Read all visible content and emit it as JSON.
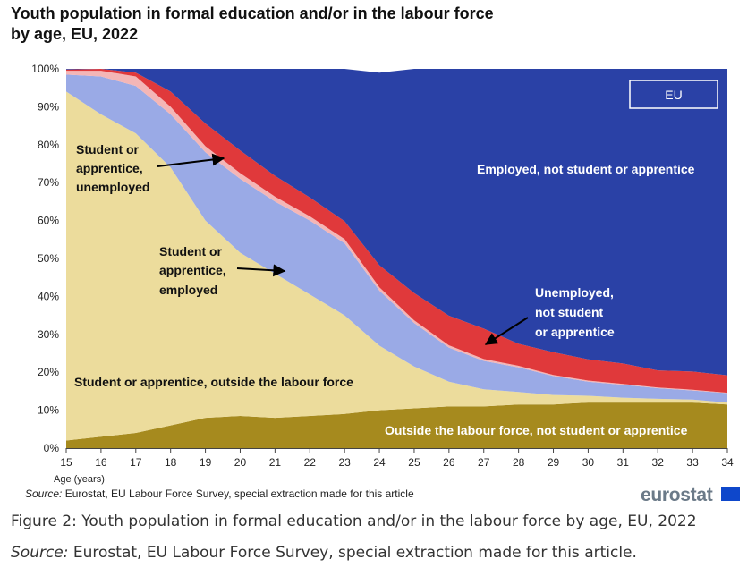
{
  "title_line1": "Youth population in formal education and/or in the labour force",
  "title_line2": "by age, EU, 2022",
  "source_label": "Source:",
  "source_text": " Eurostat, EU Labour Force Survey, special extraction made for this article",
  "logo_text": "eurostat",
  "caption": "Figure 2: Youth population in formal education and/or in the labour force by age, EU, 2022",
  "caption_source_label": "Source:",
  "caption_source_text": " Eurostat, EU Labour Force Survey, special extraction made for this article.",
  "chart_data": {
    "type": "area",
    "stacked": true,
    "xlabel": "Age (years)",
    "ylabel": "",
    "ylim": [
      0,
      100
    ],
    "grid": false,
    "legend_box": "EU",
    "x": [
      15,
      16,
      17,
      18,
      19,
      20,
      21,
      22,
      23,
      24,
      25,
      26,
      27,
      28,
      29,
      30,
      31,
      32,
      33,
      34
    ],
    "y_ticks": [
      "0%",
      "10%",
      "20%",
      "30%",
      "40%",
      "50%",
      "60%",
      "70%",
      "80%",
      "90%",
      "100%"
    ],
    "series": [
      {
        "name": "Outside the labour force, not student or apprentice",
        "color": "#a68a1e",
        "values": [
          2,
          3,
          4,
          6,
          8,
          8.5,
          8,
          8.5,
          9,
          10,
          10.5,
          11,
          11,
          11.5,
          11.5,
          12,
          12,
          12,
          12,
          11.5
        ]
      },
      {
        "name": "Student or apprentice, outside the labour force",
        "color": "#ecdc9c",
        "values": [
          92,
          85,
          79,
          68,
          52,
          43,
          38,
          32,
          26,
          17,
          11,
          6.5,
          4.5,
          3.3,
          2.5,
          1.8,
          1.3,
          1,
          0.8,
          0.5
        ]
      },
      {
        "name": "Student or apprentice, employed",
        "color": "#9aaae6",
        "values": [
          4.5,
          10,
          12.5,
          14,
          18,
          19.5,
          19,
          19.5,
          19,
          14.5,
          11.5,
          9,
          7.5,
          6.5,
          5,
          3.7,
          3.4,
          2.8,
          2.4,
          2.5
        ]
      },
      {
        "name": "Student or apprentice, unemployed",
        "color": "#f4b6b6",
        "values": [
          1,
          1.5,
          2.5,
          2,
          1.6,
          1.5,
          1.3,
          1.1,
          1.1,
          0.9,
          0.7,
          0.6,
          0.5,
          0.4,
          0.3,
          0.3,
          0.2,
          0.2,
          0.2,
          0.1
        ]
      },
      {
        "name": "Unemployed, not student or apprentice",
        "color": "#e0393b",
        "values": [
          0.3,
          0.5,
          1,
          4,
          6,
          6,
          5.5,
          5,
          4.7,
          5.8,
          7.2,
          7.8,
          8,
          5.8,
          6,
          5.6,
          5.4,
          4.5,
          4.8,
          4.6
        ]
      },
      {
        "name": "Employed, not student or apprentice",
        "color": "#2a41a6",
        "values": [
          0.2,
          0,
          1,
          6,
          14.4,
          21.5,
          28.2,
          33.9,
          40.2,
          50.8,
          59.1,
          65.1,
          68.5,
          72.5,
          74.7,
          76.6,
          77.7,
          79.5,
          79.8,
          80.8
        ]
      }
    ],
    "annotations": {
      "student_unemployed": [
        "Student or",
        "apprentice,",
        "unemployed"
      ],
      "student_employed": [
        "Student or",
        "apprentice,",
        "employed"
      ],
      "student_outside": "Student or apprentice, outside the labour force",
      "employed": "Employed, not student or apprentice",
      "unemployed": [
        "Unemployed,",
        "not student",
        "or apprentice"
      ],
      "outside": "Outside the labour force, not student or apprentice"
    }
  }
}
